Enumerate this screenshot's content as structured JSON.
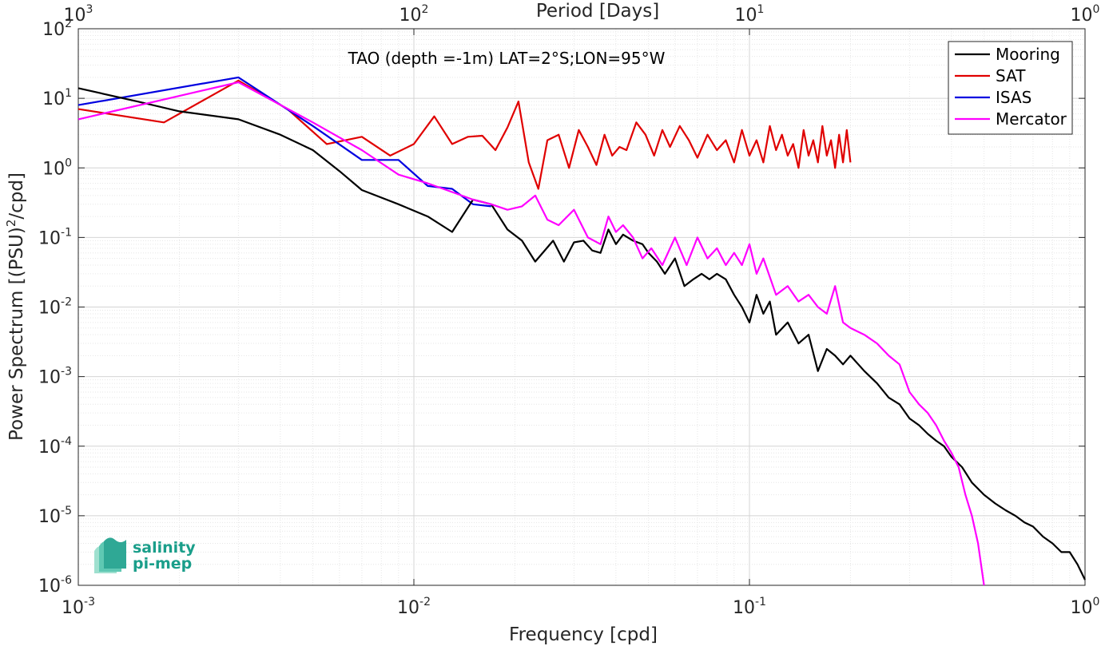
{
  "chart_data": {
    "type": "line",
    "title": "",
    "xlabel": "Frequency [cpd]",
    "ylabel": "Power Spectrum [(PSU)^2/cpd]",
    "top_axis_label": "Period [Days]",
    "annotation": "TAO (depth =-1m) LAT=2°S;LON=95°W",
    "x_scale": "log",
    "y_scale": "log",
    "xlim": [
      0.001,
      1
    ],
    "ylim": [
      1e-06,
      100
    ],
    "top_axis_ticks": [
      "10^3",
      "10^2",
      "10^1",
      "10^0"
    ],
    "x_ticks": [
      "10^-3",
      "10^-2",
      "10^-1",
      "10^0"
    ],
    "y_ticks": [
      "10^-6",
      "10^-5",
      "10^-4",
      "10^-3",
      "10^-2",
      "10^-1",
      "10^0",
      "10^1",
      "10^2"
    ],
    "grid": true,
    "legend_position": "top-right",
    "series": [
      {
        "name": "Mooring",
        "color": "#000000",
        "x": [
          0.001,
          0.0015,
          0.002,
          0.003,
          0.004,
          0.005,
          0.006,
          0.007,
          0.009,
          0.011,
          0.013,
          0.015,
          0.017,
          0.019,
          0.021,
          0.023,
          0.026,
          0.028,
          0.03,
          0.032,
          0.034,
          0.036,
          0.038,
          0.04,
          0.042,
          0.045,
          0.048,
          0.05,
          0.053,
          0.056,
          0.06,
          0.064,
          0.068,
          0.072,
          0.076,
          0.08,
          0.085,
          0.09,
          0.095,
          0.1,
          0.105,
          0.11,
          0.115,
          0.12,
          0.13,
          0.14,
          0.15,
          0.16,
          0.17,
          0.18,
          0.19,
          0.2,
          0.22,
          0.24,
          0.26,
          0.28,
          0.3,
          0.32,
          0.34,
          0.36,
          0.38,
          0.4,
          0.43,
          0.46,
          0.5,
          0.54,
          0.58,
          0.62,
          0.66,
          0.7,
          0.75,
          0.8,
          0.85,
          0.9,
          0.95,
          1.0
        ],
        "y": [
          14,
          9,
          6.5,
          5,
          3,
          1.8,
          0.9,
          0.48,
          0.3,
          0.2,
          0.12,
          0.35,
          0.3,
          0.13,
          0.09,
          0.045,
          0.09,
          0.045,
          0.085,
          0.09,
          0.065,
          0.06,
          0.13,
          0.08,
          0.11,
          0.09,
          0.08,
          0.06,
          0.045,
          0.03,
          0.05,
          0.02,
          0.025,
          0.03,
          0.025,
          0.03,
          0.025,
          0.015,
          0.01,
          0.006,
          0.015,
          0.008,
          0.012,
          0.004,
          0.006,
          0.003,
          0.004,
          0.0012,
          0.0025,
          0.002,
          0.0015,
          0.002,
          0.0012,
          0.0008,
          0.0005,
          0.0004,
          0.00025,
          0.0002,
          0.00015,
          0.00012,
          0.0001,
          7e-05,
          5e-05,
          3e-05,
          2e-05,
          1.5e-05,
          1.2e-05,
          1e-05,
          8e-06,
          7e-06,
          5e-06,
          4e-06,
          3e-06,
          3e-06,
          2e-06,
          1.2e-06
        ]
      },
      {
        "name": "SAT",
        "color": "#e00000",
        "x": [
          0.001,
          0.0018,
          0.003,
          0.0042,
          0.0055,
          0.007,
          0.0085,
          0.01,
          0.0115,
          0.013,
          0.0145,
          0.016,
          0.0175,
          0.019,
          0.0205,
          0.022,
          0.0235,
          0.025,
          0.027,
          0.029,
          0.031,
          0.033,
          0.035,
          0.037,
          0.039,
          0.041,
          0.043,
          0.046,
          0.049,
          0.052,
          0.055,
          0.058,
          0.062,
          0.066,
          0.07,
          0.075,
          0.08,
          0.085,
          0.09,
          0.095,
          0.1,
          0.105,
          0.11,
          0.115,
          0.12,
          0.125,
          0.13,
          0.135,
          0.14,
          0.145,
          0.15,
          0.155,
          0.16,
          0.165,
          0.17,
          0.175,
          0.18,
          0.185,
          0.19,
          0.195,
          0.2
        ],
        "y": [
          7,
          4.5,
          18,
          7,
          2.2,
          2.8,
          1.5,
          2.2,
          5.5,
          2.2,
          2.8,
          2.9,
          1.8,
          3.8,
          9,
          1.2,
          0.5,
          2.5,
          3,
          1.0,
          3.5,
          2.0,
          1.1,
          3.0,
          1.5,
          2.0,
          1.8,
          4.5,
          3.0,
          1.5,
          3.5,
          2.0,
          4.0,
          2.5,
          1.4,
          3.0,
          1.8,
          2.5,
          1.2,
          3.5,
          1.5,
          2.5,
          1.2,
          4.0,
          1.8,
          3.0,
          1.5,
          2.2,
          1.0,
          3.5,
          1.5,
          2.5,
          1.2,
          4.0,
          1.5,
          2.5,
          1.0,
          3.0,
          1.2,
          3.5,
          1.2
        ]
      },
      {
        "name": "ISAS",
        "color": "#0000e0",
        "x": [
          0.001,
          0.003,
          0.005,
          0.007,
          0.009,
          0.011,
          0.013,
          0.015,
          0.017
        ],
        "y": [
          8,
          20,
          4,
          1.3,
          1.3,
          0.55,
          0.5,
          0.3,
          0.28
        ]
      },
      {
        "name": "Mercator",
        "color": "#ff00ff",
        "x": [
          0.001,
          0.003,
          0.005,
          0.007,
          0.009,
          0.011,
          0.013,
          0.015,
          0.017,
          0.019,
          0.021,
          0.023,
          0.025,
          0.027,
          0.03,
          0.033,
          0.036,
          0.038,
          0.04,
          0.042,
          0.045,
          0.048,
          0.051,
          0.055,
          0.06,
          0.065,
          0.07,
          0.075,
          0.08,
          0.085,
          0.09,
          0.095,
          0.1,
          0.105,
          0.11,
          0.12,
          0.13,
          0.14,
          0.15,
          0.16,
          0.17,
          0.18,
          0.19,
          0.2,
          0.22,
          0.24,
          0.26,
          0.28,
          0.3,
          0.32,
          0.34,
          0.36,
          0.38,
          0.4,
          0.42,
          0.44,
          0.46,
          0.48,
          0.5
        ],
        "y": [
          5,
          17,
          4.5,
          1.8,
          0.8,
          0.6,
          0.45,
          0.35,
          0.3,
          0.25,
          0.28,
          0.4,
          0.18,
          0.15,
          0.25,
          0.1,
          0.08,
          0.2,
          0.12,
          0.15,
          0.1,
          0.05,
          0.07,
          0.04,
          0.1,
          0.04,
          0.1,
          0.05,
          0.07,
          0.04,
          0.06,
          0.04,
          0.08,
          0.03,
          0.05,
          0.015,
          0.02,
          0.012,
          0.015,
          0.01,
          0.008,
          0.02,
          0.006,
          0.005,
          0.004,
          0.003,
          0.002,
          0.0015,
          0.0006,
          0.0004,
          0.0003,
          0.0002,
          0.00012,
          8e-05,
          5e-05,
          2e-05,
          1e-05,
          4e-06,
          1e-06
        ]
      }
    ]
  },
  "logo": {
    "line1": "salinity",
    "line2": "pi-mep"
  }
}
